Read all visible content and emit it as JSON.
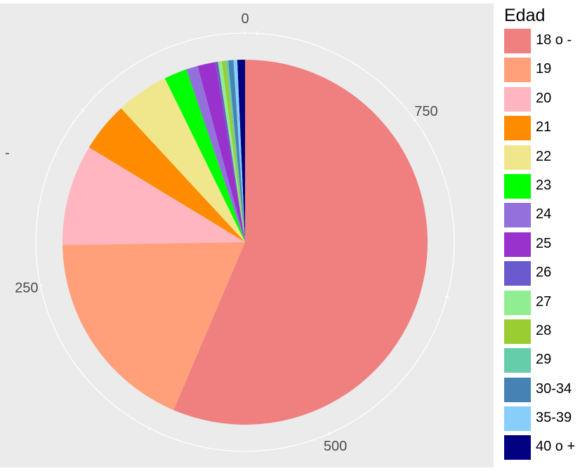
{
  "chart_data": {
    "type": "pie",
    "theta_axis": {
      "tick_values": [
        0,
        250,
        500,
        750
      ],
      "tick_labels": [
        "0",
        "250",
        "500",
        "750"
      ],
      "total": 883
    },
    "left_stray_tick": "-",
    "legend": {
      "title": "Edad",
      "placement": "right"
    },
    "slices": [
      {
        "label": "40 o +",
        "value": 6,
        "color": "#000080"
      },
      {
        "label": "35-39",
        "value": 3,
        "color": "#87CEFA"
      },
      {
        "label": "30-34",
        "value": 4,
        "color": "#4682B4"
      },
      {
        "label": "29",
        "value": 2,
        "color": "#66CDAA"
      },
      {
        "label": "28",
        "value": 3,
        "color": "#9ACD32"
      },
      {
        "label": "27",
        "value": 3,
        "color": "#90EE90"
      },
      {
        "label": "26",
        "value": 2,
        "color": "#6A5ACD"
      },
      {
        "label": "25",
        "value": 14,
        "color": "#9932CC"
      },
      {
        "label": "24",
        "value": 9,
        "color": "#9370DB"
      },
      {
        "label": "23",
        "value": 18,
        "color": "#00FF00"
      },
      {
        "label": "22",
        "value": 41,
        "color": "#F0E68C"
      },
      {
        "label": "21",
        "value": 39,
        "color": "#FF8C00"
      },
      {
        "label": "20",
        "value": 79,
        "color": "#FFB6C1"
      },
      {
        "label": "19",
        "value": 162,
        "color": "#FFA07A"
      },
      {
        "label": "18 o -",
        "value": 498,
        "color": "#F08080"
      }
    ],
    "legend_order": [
      "18 o -",
      "19",
      "20",
      "21",
      "22",
      "23",
      "24",
      "25",
      "26",
      "27",
      "28",
      "29",
      "30-34",
      "35-39",
      "40 o +"
    ],
    "panel_background": "#EBEBEB",
    "grid_color": "#FFFFFF"
  }
}
